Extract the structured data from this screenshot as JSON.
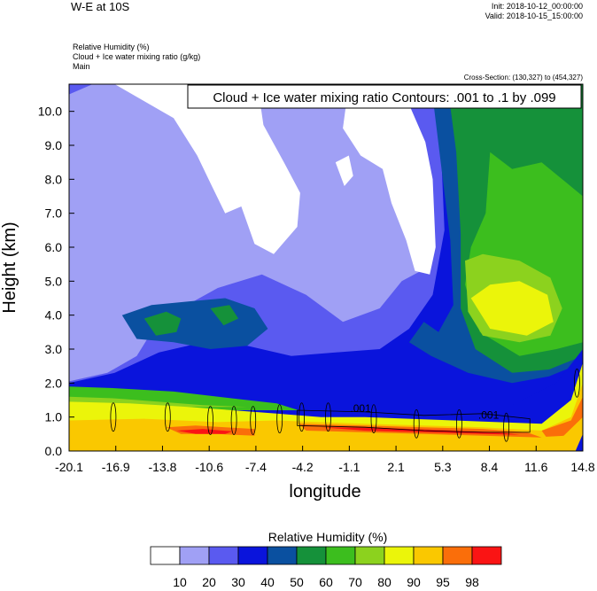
{
  "header": {
    "title": "W-E at 10S",
    "init": "Init: 2018-10-12_00:00:00",
    "valid": "Valid: 2018-10-15_15:00:00",
    "field1": "Relative Humidity   (%)",
    "field2": "Cloud + Ice water mixing ratio   (g/kg)",
    "field3": "Main",
    "cross_section": "Cross-Section: (130,327) to (454,327)"
  },
  "chart_data": {
    "type": "heatmap",
    "title": "W-E at 10S",
    "annotation": "Cloud + Ice water mixing ratio Contours: .001 to .1 by .099",
    "xlabel": "longitude",
    "ylabel": "Height (km)",
    "x_ticks": [
      "-20.1",
      "-16.9",
      "-13.8",
      "-10.6",
      "-7.4",
      "-4.2",
      "-1.1",
      "2.1",
      "5.3",
      "8.4",
      "11.6",
      "14.8"
    ],
    "y_ticks": [
      "0.0",
      "1.0",
      "2.0",
      "3.0",
      "4.0",
      "5.0",
      "6.0",
      "7.0",
      "8.0",
      "9.0",
      "10.0"
    ],
    "xlim": [
      -20.1,
      14.8
    ],
    "ylim": [
      0,
      10.8
    ],
    "contour_labels": [
      {
        "text": ".001",
        "x": -0.3,
        "y": 1.15
      },
      {
        "text": ".001",
        "x": 8.4,
        "y": 0.95
      }
    ],
    "colorbar": {
      "title": "Relative Humidity  (%)",
      "levels": [
        "10",
        "20",
        "30",
        "40",
        "50",
        "60",
        "70",
        "80",
        "90",
        "95",
        "98"
      ],
      "colors": [
        "#ffffff",
        "#a0a0f5",
        "#5a5af0",
        "#0a14dc",
        "#0a50a0",
        "#15913a",
        "#3cbe1e",
        "#8cd21e",
        "#ebf50a",
        "#fac800",
        "#fa6e0a",
        "#fa1414"
      ]
    }
  }
}
